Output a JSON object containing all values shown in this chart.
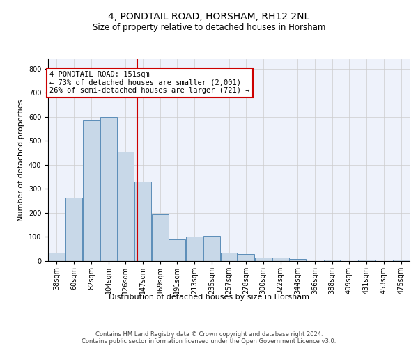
{
  "title": "4, PONDTAIL ROAD, HORSHAM, RH12 2NL",
  "subtitle": "Size of property relative to detached houses in Horsham",
  "xlabel": "Distribution of detached houses by size in Horsham",
  "ylabel": "Number of detached properties",
  "bar_color": "#c8d8e8",
  "bar_edge_color": "#5b8db8",
  "bg_color": "#eef2fb",
  "grid_color": "#cccccc",
  "vline_x": 151,
  "vline_color": "#cc0000",
  "annotation_text": "4 PONDTAIL ROAD: 151sqm\n← 73% of detached houses are smaller (2,001)\n26% of semi-detached houses are larger (721) →",
  "annotation_box_color": "#cc0000",
  "bins": [
    38,
    60,
    82,
    104,
    126,
    147,
    169,
    191,
    213,
    235,
    257,
    278,
    300,
    322,
    344,
    366,
    388,
    409,
    431,
    453,
    475
  ],
  "counts": [
    35,
    265,
    585,
    600,
    455,
    330,
    195,
    90,
    100,
    105,
    35,
    30,
    15,
    15,
    10,
    0,
    5,
    0,
    5,
    0,
    5
  ],
  "footer": "Contains HM Land Registry data © Crown copyright and database right 2024.\nContains public sector information licensed under the Open Government Licence v3.0.",
  "ylim": [
    0,
    840
  ],
  "yticks": [
    0,
    100,
    200,
    300,
    400,
    500,
    600,
    700,
    800
  ],
  "title_fontsize": 10,
  "subtitle_fontsize": 8.5,
  "ylabel_fontsize": 8,
  "xlabel_fontsize": 8,
  "footer_fontsize": 6,
  "tick_fontsize": 7
}
